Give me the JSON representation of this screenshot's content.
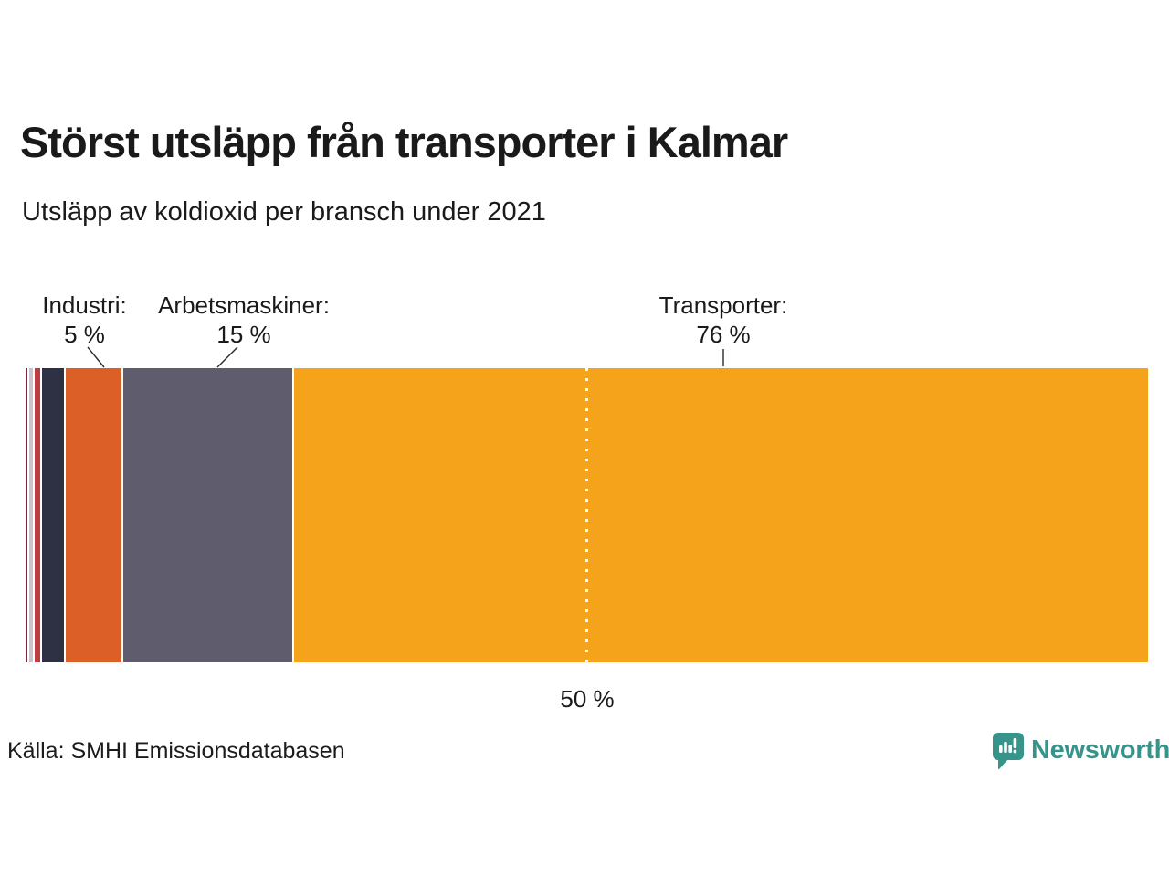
{
  "header": {
    "title": "Störst utsläpp från transporter i Kalmar",
    "subtitle": "Utsläpp av koldioxid per bransch under 2021"
  },
  "annotations": [
    {
      "label": "Industri:",
      "value": "5 %"
    },
    {
      "label": "Arbetsmaskiner:",
      "value": "15 %"
    },
    {
      "label": "Transporter:",
      "value": "76 %"
    }
  ],
  "chart_data": {
    "type": "bar",
    "subtype": "horizontal-stacked-percentage",
    "title": "Störst utsläpp från transporter i Kalmar",
    "subtitle": "Utsläpp av koldioxid per bransch under 2021",
    "unit": "%",
    "segments": [
      {
        "label": null,
        "percent": 0.2,
        "color": "#7a2440"
      },
      {
        "label": null,
        "percent": 0.3,
        "color": "#cbc4cd"
      },
      {
        "label": null,
        "percent": 0.5,
        "color": "#bf3d40"
      },
      {
        "label": null,
        "percent": 1.9,
        "color": "#2d3143"
      },
      {
        "label": "Industri",
        "percent": 5,
        "color": "#dd5f28"
      },
      {
        "label": "Arbetsmaskiner",
        "percent": 15,
        "color": "#5f5d6d"
      },
      {
        "label": "Transporter",
        "percent": 76,
        "color": "#f5a31b"
      }
    ],
    "axis_marker": {
      "position_percent": 50,
      "label": "50 %"
    },
    "xlim": [
      0,
      100
    ],
    "grid": false,
    "legend": false
  },
  "footer": {
    "source": "Källa: SMHI Emissionsdatabasen",
    "brand": "Newsworthy",
    "brand_color": "#37948b"
  }
}
